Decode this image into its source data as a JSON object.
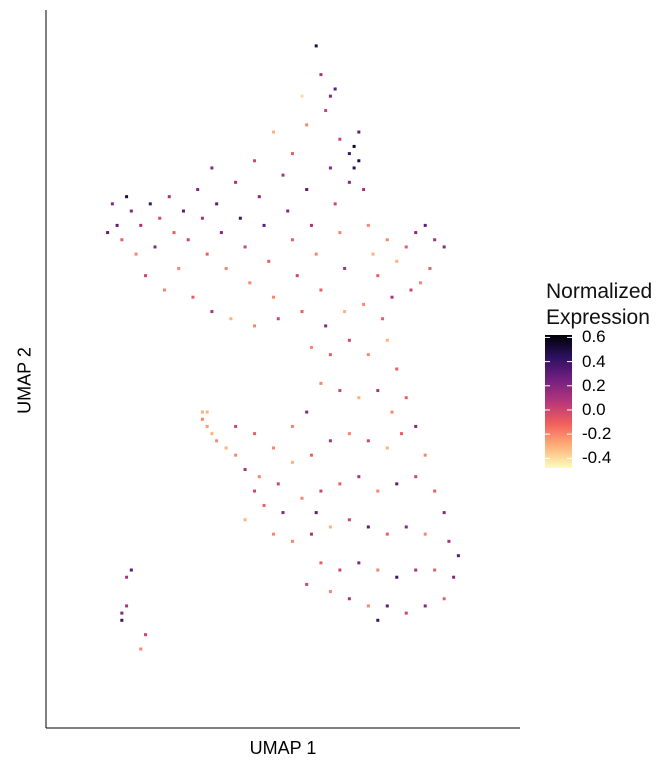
{
  "chart_data": {
    "type": "scatter",
    "title": "",
    "xlabel": "UMAP 1",
    "ylabel": "UMAP 2",
    "xlim": [
      0,
      100
    ],
    "ylim": [
      0,
      100
    ],
    "grid": false,
    "legend": {
      "title": "Normalized Expression",
      "title_lines": [
        "Normalized",
        "Expression"
      ],
      "placement": "right",
      "range": [
        -0.48,
        0.62
      ],
      "ticks": [
        0.6,
        0.4,
        0.2,
        0.0,
        -0.2,
        -0.4
      ],
      "tick_labels": [
        "0.6",
        "0.4",
        "0.2",
        "0.0",
        "-0.2",
        "-0.4"
      ],
      "colormap": "magma (reversed)",
      "colors": [
        "#fcfdbf",
        "#feb078",
        "#f1605d",
        "#b5367a",
        "#721f81",
        "#2c115f",
        "#000004"
      ]
    },
    "points_note": "",
    "points": [
      [
        15,
        70,
        0.3
      ],
      [
        16,
        68,
        -0.1
      ],
      [
        18,
        72,
        0.2
      ],
      [
        20,
        70,
        0.1
      ],
      [
        19,
        66,
        -0.2
      ],
      [
        22,
        73,
        0.4
      ],
      [
        24,
        71,
        0.0
      ],
      [
        23,
        67,
        0.2
      ],
      [
        26,
        74,
        0.1
      ],
      [
        27,
        69,
        -0.1
      ],
      [
        29,
        72,
        0.3
      ],
      [
        30,
        68,
        0.0
      ],
      [
        28,
        64,
        -0.2
      ],
      [
        32,
        75,
        0.2
      ],
      [
        33,
        71,
        0.1
      ],
      [
        34,
        66,
        -0.1
      ],
      [
        36,
        73,
        0.3
      ],
      [
        37,
        69,
        0.2
      ],
      [
        38,
        64,
        -0.2
      ],
      [
        40,
        76,
        0.1
      ],
      [
        41,
        71,
        0.4
      ],
      [
        42,
        67,
        0.0
      ],
      [
        43,
        62,
        -0.2
      ],
      [
        45,
        74,
        0.2
      ],
      [
        46,
        70,
        0.3
      ],
      [
        47,
        65,
        -0.1
      ],
      [
        48,
        60,
        -0.2
      ],
      [
        50,
        77,
        0.1
      ],
      [
        51,
        72,
        0.2
      ],
      [
        52,
        68,
        -0.1
      ],
      [
        53,
        63,
        0.0
      ],
      [
        55,
        75,
        0.3
      ],
      [
        56,
        70,
        0.1
      ],
      [
        57,
        66,
        -0.2
      ],
      [
        58,
        61,
        -0.1
      ],
      [
        60,
        78,
        0.2
      ],
      [
        61,
        73,
        0.0
      ],
      [
        62,
        69,
        -0.2
      ],
      [
        63,
        64,
        0.1
      ],
      [
        64,
        80,
        0.4
      ],
      [
        65,
        81,
        0.55
      ],
      [
        66,
        79,
        0.5
      ],
      [
        65,
        78,
        0.45
      ],
      [
        66,
        83,
        0.3
      ],
      [
        64,
        76,
        0.2
      ],
      [
        67,
        75,
        0.1
      ],
      [
        62,
        82,
        0.0
      ],
      [
        68,
        70,
        -0.2
      ],
      [
        69,
        66,
        -0.3
      ],
      [
        70,
        63,
        -0.1
      ],
      [
        72,
        68,
        -0.2
      ],
      [
        74,
        65,
        -0.3
      ],
      [
        76,
        67,
        -0.1
      ],
      [
        78,
        69,
        0.2
      ],
      [
        80,
        70,
        0.3
      ],
      [
        82,
        68,
        0.1
      ],
      [
        84,
        67,
        0.2
      ],
      [
        81,
        64,
        -0.1
      ],
      [
        79,
        62,
        -0.2
      ],
      [
        77,
        61,
        0.0
      ],
      [
        21,
        63,
        0.0
      ],
      [
        25,
        61,
        -0.2
      ],
      [
        31,
        60,
        -0.1
      ],
      [
        35,
        58,
        0.1
      ],
      [
        39,
        57,
        -0.3
      ],
      [
        44,
        56,
        -0.2
      ],
      [
        49,
        57,
        0.0
      ],
      [
        54,
        58,
        -0.1
      ],
      [
        59,
        56,
        0.2
      ],
      [
        63,
        58,
        -0.3
      ],
      [
        67,
        59,
        -0.2
      ],
      [
        71,
        57,
        -0.1
      ],
      [
        73,
        60,
        0.1
      ],
      [
        17,
        74,
        0.5
      ],
      [
        14,
        73,
        0.2
      ],
      [
        13,
        69,
        0.3
      ],
      [
        35,
        78,
        0.2
      ],
      [
        44,
        79,
        0.0
      ],
      [
        52,
        80,
        -0.1
      ],
      [
        48,
        83,
        -0.3
      ],
      [
        55,
        84,
        -0.2
      ],
      [
        54,
        88,
        -0.4
      ],
      [
        59,
        86,
        0.0
      ],
      [
        60,
        88,
        0.2
      ],
      [
        61,
        89,
        0.3
      ],
      [
        58,
        91,
        0.1
      ],
      [
        57,
        95,
        0.5
      ],
      [
        56,
        53,
        -0.2
      ],
      [
        60,
        52,
        -0.1
      ],
      [
        64,
        54,
        0.0
      ],
      [
        68,
        52,
        -0.2
      ],
      [
        72,
        54,
        -0.3
      ],
      [
        74,
        50,
        -0.1
      ],
      [
        58,
        48,
        -0.2
      ],
      [
        62,
        47,
        0.0
      ],
      [
        66,
        46,
        -0.3
      ],
      [
        70,
        47,
        0.1
      ],
      [
        73,
        44,
        -0.2
      ],
      [
        76,
        46,
        -0.1
      ],
      [
        55,
        44,
        0.2
      ],
      [
        52,
        42,
        -0.2
      ],
      [
        33,
        44,
        -0.3
      ],
      [
        34,
        42,
        -0.25
      ],
      [
        35,
        41,
        -0.3
      ],
      [
        36,
        40,
        -0.2
      ],
      [
        38,
        39,
        -0.3
      ],
      [
        40,
        38,
        -0.2
      ],
      [
        33,
        43,
        -0.2
      ],
      [
        34,
        44,
        -0.3
      ],
      [
        40,
        42,
        0.0
      ],
      [
        44,
        41,
        -0.1
      ],
      [
        48,
        39,
        -0.2
      ],
      [
        42,
        36,
        0.1
      ],
      [
        45,
        35,
        -0.2
      ],
      [
        49,
        34,
        0.0
      ],
      [
        52,
        37,
        -0.3
      ],
      [
        56,
        38,
        -0.1
      ],
      [
        60,
        40,
        0.1
      ],
      [
        64,
        41,
        -0.2
      ],
      [
        68,
        40,
        0.0
      ],
      [
        72,
        39,
        -0.3
      ],
      [
        75,
        41,
        -0.1
      ],
      [
        78,
        42,
        0.2
      ],
      [
        80,
        38,
        -0.2
      ],
      [
        46,
        31,
        -0.1
      ],
      [
        50,
        30,
        0.2
      ],
      [
        54,
        32,
        -0.2
      ],
      [
        58,
        33,
        0.0
      ],
      [
        62,
        34,
        -0.1
      ],
      [
        66,
        35,
        0.1
      ],
      [
        70,
        33,
        -0.2
      ],
      [
        74,
        34,
        0.3
      ],
      [
        78,
        35,
        0.0
      ],
      [
        82,
        33,
        -0.1
      ],
      [
        84,
        30,
        0.2
      ],
      [
        52,
        26,
        -0.2
      ],
      [
        56,
        27,
        0.1
      ],
      [
        60,
        28,
        -0.3
      ],
      [
        64,
        29,
        0.0
      ],
      [
        68,
        28,
        0.3
      ],
      [
        72,
        27,
        -0.1
      ],
      [
        76,
        28,
        0.2
      ],
      [
        80,
        27,
        -0.2
      ],
      [
        85,
        26,
        0.1
      ],
      [
        87,
        24,
        0.3
      ],
      [
        58,
        23,
        -0.1
      ],
      [
        62,
        22,
        0.0
      ],
      [
        66,
        23,
        0.2
      ],
      [
        70,
        22,
        -0.2
      ],
      [
        74,
        21,
        0.4
      ],
      [
        78,
        22,
        0.1
      ],
      [
        82,
        22,
        -0.1
      ],
      [
        86,
        21,
        0.2
      ],
      [
        64,
        18,
        0.1
      ],
      [
        68,
        17,
        -0.2
      ],
      [
        72,
        17,
        0.3
      ],
      [
        76,
        16,
        0.0
      ],
      [
        80,
        17,
        0.2
      ],
      [
        84,
        18,
        -0.1
      ],
      [
        70,
        15,
        0.4
      ],
      [
        60,
        19,
        -0.2
      ],
      [
        55,
        20,
        0.0
      ],
      [
        57,
        30,
        0.3
      ],
      [
        48,
        27,
        -0.2
      ],
      [
        44,
        33,
        0.0
      ],
      [
        42,
        29,
        -0.3
      ],
      [
        17,
        21,
        0.1
      ],
      [
        18,
        22,
        0.3
      ],
      [
        16,
        16,
        0.2
      ],
      [
        16,
        15,
        0.4
      ],
      [
        21,
        13,
        0.0
      ],
      [
        20,
        11,
        -0.2
      ],
      [
        17,
        17,
        0.1
      ]
    ]
  }
}
